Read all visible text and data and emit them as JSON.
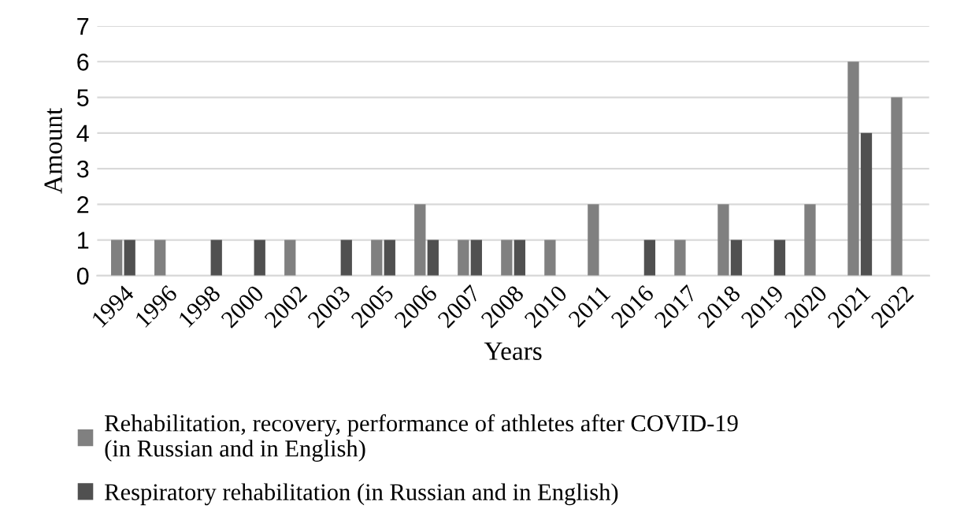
{
  "chart_data": {
    "type": "bar",
    "xlabel": "Years",
    "ylabel": "Amount",
    "categories": [
      "1994",
      "1996",
      "1998",
      "2000",
      "2002",
      "2003",
      "2005",
      "2006",
      "2007",
      "2008",
      "2010",
      "2011",
      "2016",
      "2017",
      "2018",
      "2019",
      "2020",
      "2021",
      "2022"
    ],
    "series": [
      {
        "name": "Rehabilitation, recovery, performance of athletes after COVID-19  (in Russian and in English)",
        "color": "#808080",
        "values": [
          1,
          1,
          0,
          0,
          1,
          0,
          1,
          2,
          1,
          1,
          1,
          2,
          0,
          1,
          2,
          0,
          2,
          6,
          5
        ]
      },
      {
        "name": "Respiratory rehabilitation (in Russian and in English)",
        "color": "#505050",
        "values": [
          1,
          0,
          1,
          1,
          0,
          1,
          1,
          1,
          1,
          1,
          0,
          0,
          1,
          0,
          1,
          1,
          0,
          4,
          0
        ]
      }
    ],
    "ylim": [
      0,
      7
    ],
    "yticks": [
      0,
      1,
      2,
      3,
      4,
      5,
      6,
      7
    ],
    "grid": "y",
    "legend": "bottom"
  }
}
